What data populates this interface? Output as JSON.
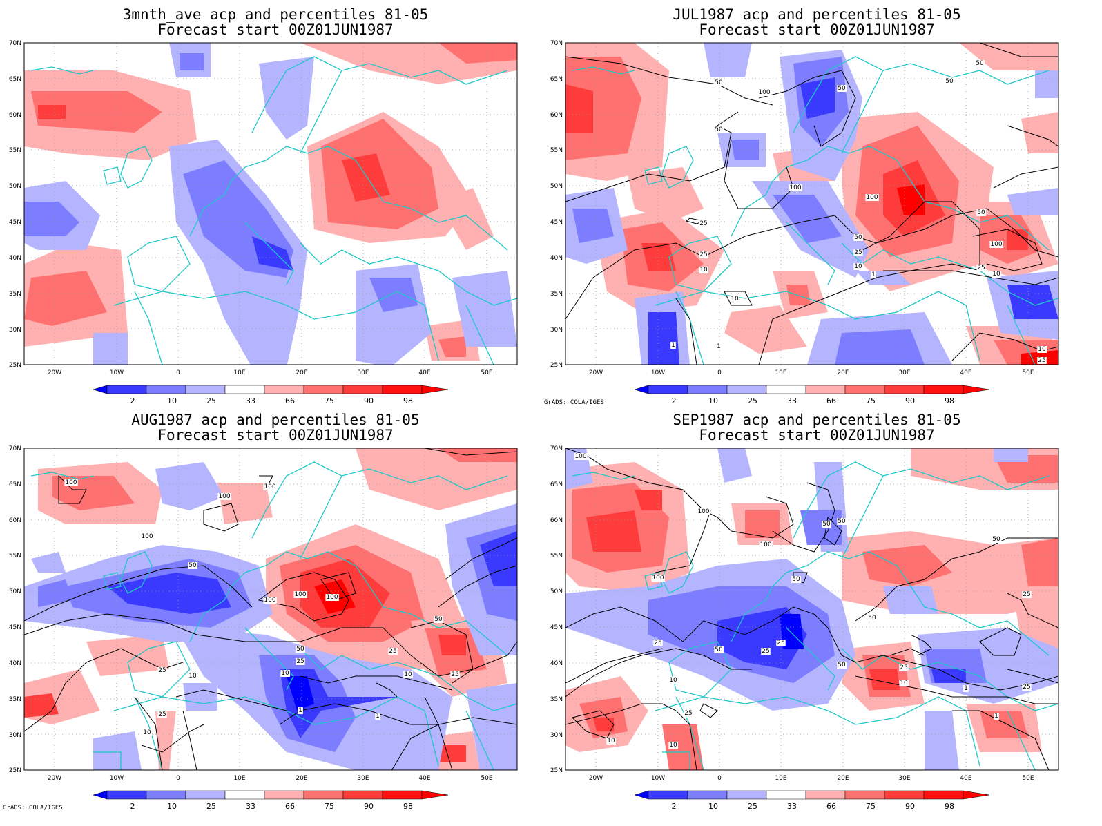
{
  "common": {
    "subtitle": "Forecast start 00Z01JUN1987",
    "credit": "GrADS: COLA/IGES",
    "lat_labels": [
      "70N",
      "65N",
      "60N",
      "55N",
      "50N",
      "45N",
      "40N",
      "35N",
      "30N",
      "25N"
    ],
    "lon_labels": [
      "20W",
      "10W",
      "0",
      "10E",
      "20E",
      "30E",
      "40E",
      "50E"
    ],
    "legend_labels": [
      "2",
      "10",
      "25",
      "33",
      "66",
      "75",
      "90",
      "98"
    ],
    "legend_colors": [
      "#0000ff",
      "#3a3aff",
      "#7d7dff",
      "#b4b4ff",
      "#ffffff",
      "#ffb0b0",
      "#ff7070",
      "#ff3c3c",
      "#ff0000"
    ],
    "colors": {
      "coast": "#1ec8c8",
      "grid": "#999999",
      "contour": "#000000"
    }
  },
  "panels": [
    {
      "id": "p1",
      "title": "3mnth_ave acp and percentiles 81-05",
      "contour_labels": [],
      "show_credit": false
    },
    {
      "id": "p2",
      "title": "JUL1987 acp and percentiles 81-05",
      "contour_labels": [
        "50",
        "100",
        "50",
        "50",
        "50",
        "50",
        "100",
        "100",
        "25",
        "25",
        "10",
        "50",
        "25",
        "10",
        "1",
        "50",
        "100",
        "25",
        "10",
        "10",
        "1",
        "1",
        "10",
        "25"
      ],
      "show_credit": true
    },
    {
      "id": "p3",
      "title": "AUG1987 acp and percentiles 81-05",
      "contour_labels": [
        "100",
        "100",
        "100",
        "100",
        "50",
        "100",
        "100",
        "100",
        "50",
        "50",
        "25",
        "10",
        "25",
        "10",
        "25",
        "1",
        "1",
        "25",
        "10",
        "10",
        "25"
      ],
      "show_credit": true
    },
    {
      "id": "p4",
      "title": "SEP1987 acp and percentiles 81-05",
      "contour_labels": [
        "100",
        "100",
        "100",
        "50",
        "50",
        "50",
        "100",
        "50",
        "25",
        "50",
        "25",
        "50",
        "25",
        "10",
        "25",
        "50",
        "25",
        "10",
        "1",
        "1",
        "10",
        "10",
        "25",
        "25"
      ],
      "show_credit": true
    }
  ]
}
